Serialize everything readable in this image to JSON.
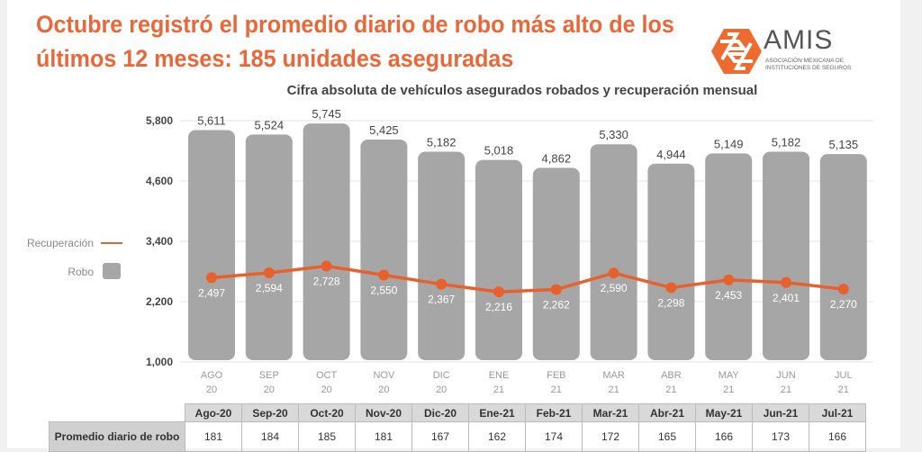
{
  "header": {
    "title": "Octubre registró el promedio diario de robo más alto de los últimos 12 meses: 185 unidades aseguradas"
  },
  "logo": {
    "word": "AMIS",
    "subtitle": "ASOCIACIÓN MEXICANA DE INSTITUCIONES DE SEGUROS",
    "color": "#ee6b2f"
  },
  "chart_data": {
    "type": "bar",
    "title": "Cifra absoluta de vehículos asegurados robados y recuperación mensual",
    "categories": [
      "AGO 20",
      "SEP 20",
      "OCT 20",
      "NOV 20",
      "DIC 20",
      "ENE 21",
      "FEB 21",
      "MAR 21",
      "ABR 21",
      "MAY 21",
      "JUN 21",
      "JUL 21"
    ],
    "ylim": [
      1000,
      5800
    ],
    "yticks": [
      1000,
      2200,
      3400,
      4600,
      5800
    ],
    "ytick_labels": [
      "1,000",
      "2,200",
      "3,400",
      "4,600",
      "5,800"
    ],
    "grid": true,
    "legend_position": "left",
    "series": [
      {
        "name": "Robo",
        "type": "bar",
        "color": "#a6a6a6",
        "values": [
          5611,
          5524,
          5745,
          5425,
          5182,
          5018,
          4862,
          5330,
          4944,
          5149,
          5182,
          5135
        ],
        "labels": [
          "5,611",
          "5,524",
          "5,745",
          "5,425",
          "5,182",
          "5,018",
          "4,862",
          "5,330",
          "4,944",
          "5,149",
          "5,182",
          "5,135"
        ]
      },
      {
        "name": "Recuperación",
        "type": "line",
        "color": "#e8602c",
        "values": [
          2497,
          2594,
          2728,
          2550,
          2367,
          2216,
          2262,
          2590,
          2298,
          2453,
          2401,
          2270
        ],
        "labels": [
          "2,497",
          "2,594",
          "2,728",
          "2,550",
          "2,367",
          "2,216",
          "2,262",
          "2,590",
          "2,298",
          "2,453",
          "2,401",
          "2,270"
        ]
      }
    ]
  },
  "table": {
    "row_label": "Promedio diario de robo",
    "months": [
      "Ago-20",
      "Sep-20",
      "Oct-20",
      "Nov-20",
      "Dic-20",
      "Ene-21",
      "Feb-21",
      "Mar-21",
      "Abr-21",
      "May-21",
      "Jun-21",
      "Jul-21"
    ],
    "values": [
      "181",
      "184",
      "185",
      "181",
      "167",
      "162",
      "174",
      "172",
      "165",
      "166",
      "173",
      "166"
    ]
  }
}
